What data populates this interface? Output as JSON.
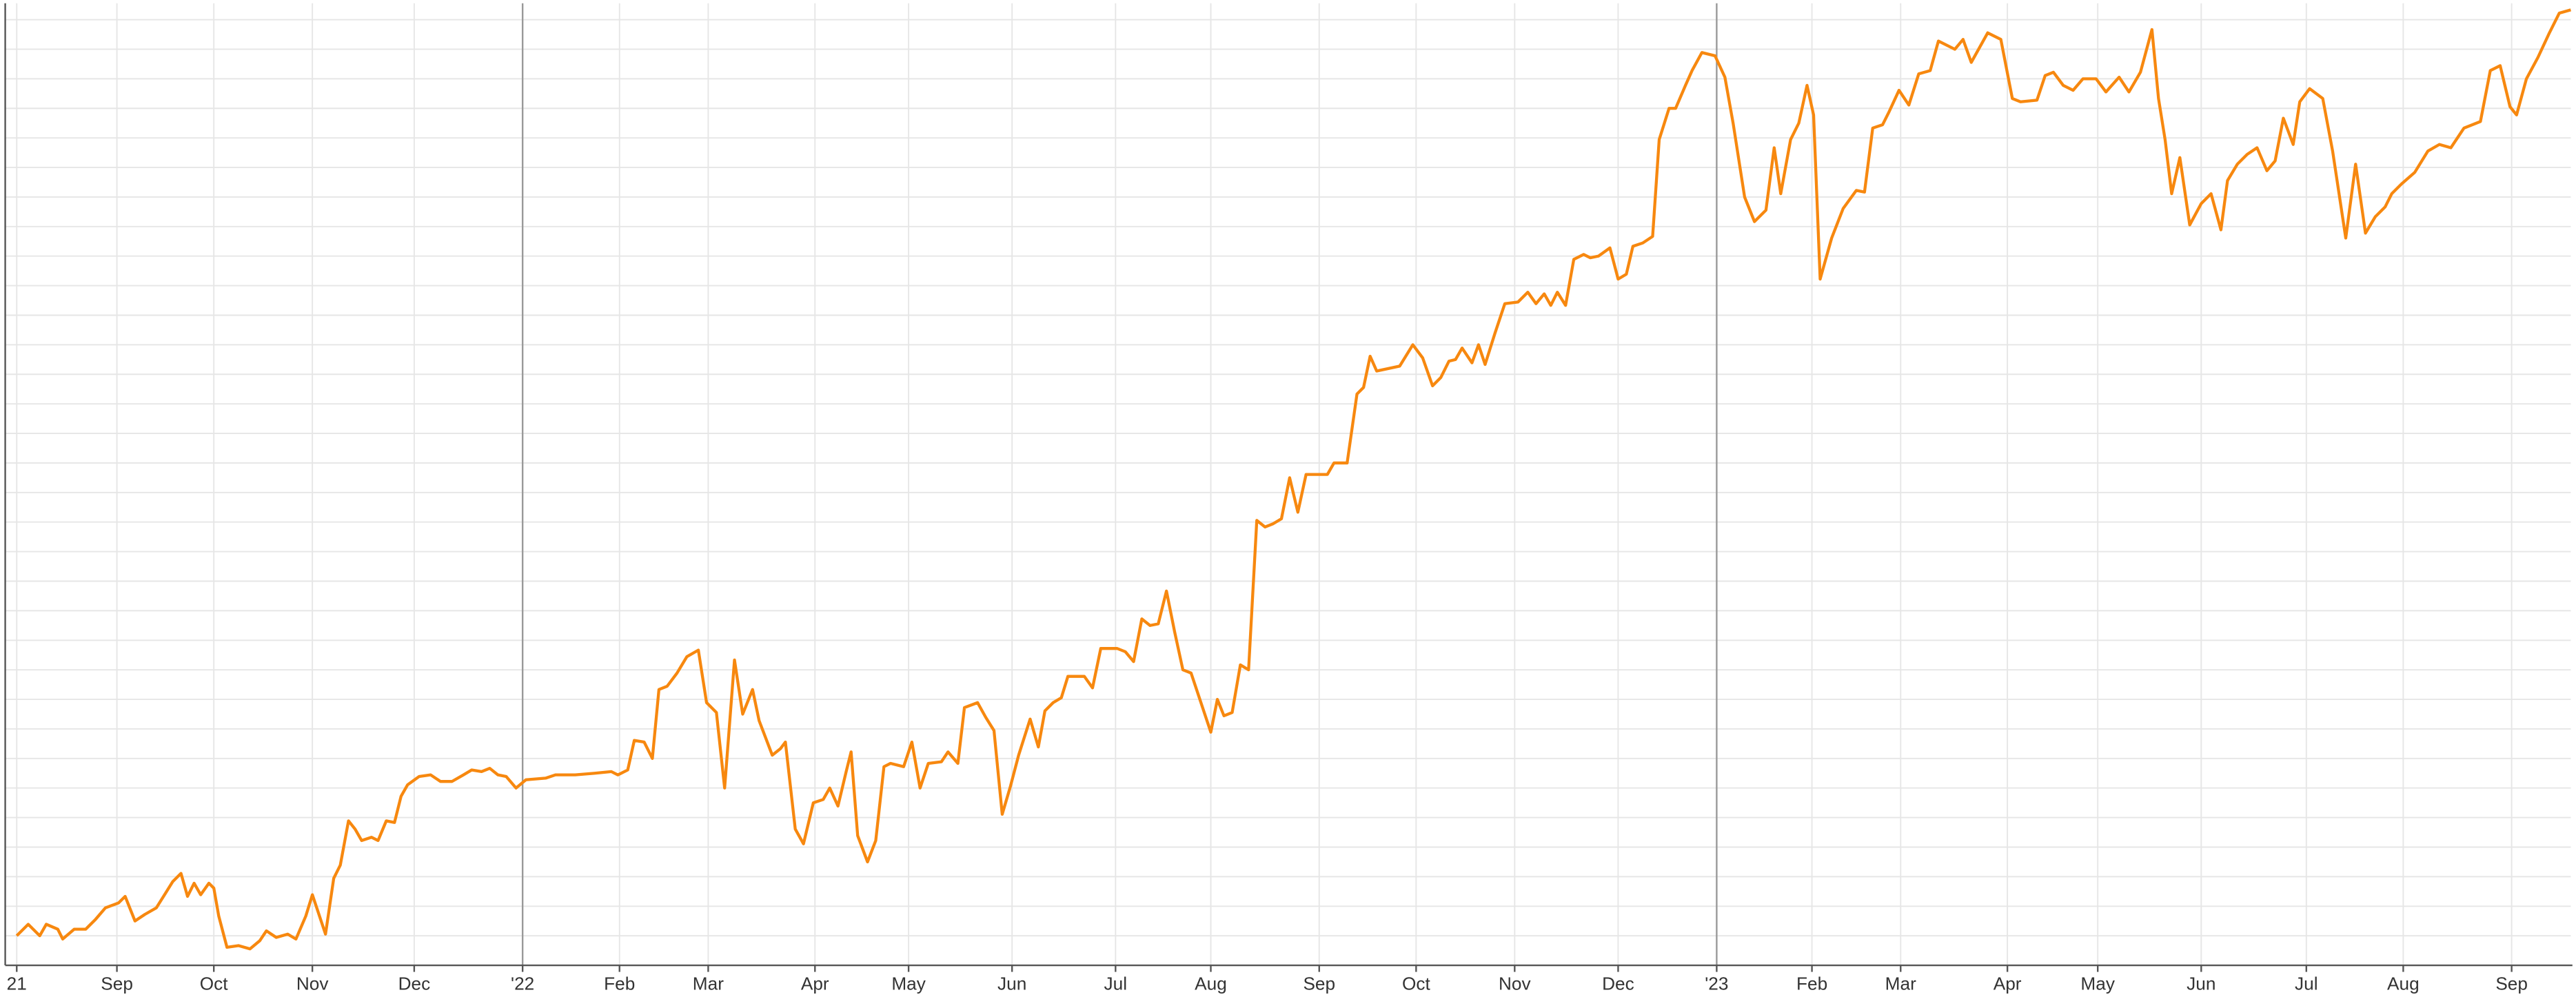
{
  "chart_data": {
    "type": "line",
    "color": "#f7880f",
    "grid": true,
    "xlim": [
      -7,
      1555
    ],
    "ylim": [
      0,
      585
    ],
    "xticks": [
      {
        "value": 0,
        "label": "21"
      },
      {
        "value": 61,
        "label": "Sep"
      },
      {
        "value": 120,
        "label": "Oct"
      },
      {
        "value": 180,
        "label": "Nov"
      },
      {
        "value": 242,
        "label": "Dec"
      },
      {
        "value": 308,
        "label": "'22"
      },
      {
        "value": 367,
        "label": "Feb"
      },
      {
        "value": 421,
        "label": "Mar"
      },
      {
        "value": 486,
        "label": "Apr"
      },
      {
        "value": 543,
        "label": "May"
      },
      {
        "value": 606,
        "label": "Jun"
      },
      {
        "value": 669,
        "label": "Jul"
      },
      {
        "value": 727,
        "label": "Aug"
      },
      {
        "value": 793,
        "label": "Sep"
      },
      {
        "value": 852,
        "label": "Oct"
      },
      {
        "value": 912,
        "label": "Nov"
      },
      {
        "value": 975,
        "label": "Dec"
      },
      {
        "value": 1035,
        "label": "'23"
      },
      {
        "value": 1093,
        "label": "Feb"
      },
      {
        "value": 1147,
        "label": "Mar"
      },
      {
        "value": 1212,
        "label": "Apr"
      },
      {
        "value": 1267,
        "label": "May"
      },
      {
        "value": 1330,
        "label": "Jun"
      },
      {
        "value": 1394,
        "label": "Jul"
      },
      {
        "value": 1453,
        "label": "Aug"
      },
      {
        "value": 1519,
        "label": "Sep"
      }
    ],
    "yticks": [
      0,
      18,
      36,
      54,
      72,
      90,
      108,
      126,
      144,
      162,
      180,
      198,
      216,
      234,
      252,
      270,
      288,
      306,
      324,
      342,
      360,
      378,
      396,
      414,
      432,
      450,
      468,
      486,
      504,
      522,
      540,
      558,
      576
    ],
    "x": [
      0,
      7,
      14,
      18,
      25,
      28,
      35,
      42,
      48,
      54,
      62,
      66,
      72,
      78,
      85,
      90,
      95,
      100,
      104,
      108,
      112,
      117,
      120,
      123,
      128,
      135,
      142,
      148,
      152,
      158,
      165,
      170,
      176,
      180,
      188,
      193,
      197,
      202,
      206,
      210,
      216,
      220,
      225,
      230,
      234,
      238,
      245,
      252,
      258,
      265,
      272,
      277,
      283,
      288,
      293,
      298,
      304,
      310,
      322,
      328,
      340,
      352,
      362,
      366,
      372,
      376,
      382,
      387,
      391,
      396,
      402,
      408,
      415,
      420,
      426,
      431,
      437,
      442,
      448,
      452,
      460,
      465,
      468,
      474,
      479,
      485,
      491,
      495,
      500,
      505,
      508,
      512,
      518,
      523,
      528,
      532,
      540,
      545,
      550,
      555,
      563,
      567,
      573,
      577,
      585,
      590,
      595,
      600,
      605,
      610,
      617,
      622,
      626,
      631,
      636,
      640,
      650,
      655,
      660,
      670,
      675,
      680,
      685,
      690,
      695,
      700,
      705,
      710,
      715,
      720,
      727,
      731,
      735,
      740,
      745,
      750,
      755,
      760,
      765,
      770,
      775,
      780,
      785,
      798,
      802,
      810,
      816,
      820,
      824,
      828,
      842,
      850,
      856,
      862,
      867,
      872,
      876,
      880,
      886,
      890,
      894,
      900,
      906,
      914,
      920,
      925,
      930,
      934,
      938,
      943,
      948,
      954,
      958,
      963,
      970,
      975,
      980,
      984,
      990,
      996,
      1000,
      1006,
      1010,
      1016,
      1020,
      1026,
      1034,
      1040,
      1045,
      1052,
      1058,
      1065,
      1070,
      1074,
      1080,
      1085,
      1090,
      1094,
      1098,
      1105,
      1112,
      1120,
      1125,
      1130,
      1136,
      1140,
      1146,
      1152,
      1158,
      1165,
      1170,
      1180,
      1185,
      1190,
      1200,
      1208,
      1215,
      1220,
      1230,
      1235,
      1240,
      1246,
      1252,
      1258,
      1266,
      1272,
      1280,
      1286,
      1293,
      1300,
      1304,
      1308,
      1312,
      1317,
      1323,
      1330,
      1336,
      1342,
      1346,
      1352,
      1358,
      1364,
      1370,
      1375,
      1380,
      1386,
      1390,
      1396,
      1404,
      1410,
      1418,
      1424,
      1430,
      1436,
      1442,
      1446,
      1452,
      1460,
      1468,
      1475,
      1482,
      1490,
      1500,
      1506,
      1512,
      1518,
      1522,
      1528,
      1535,
      1542,
      1548,
      1555
    ],
    "values": [
      18,
      25,
      18,
      25,
      22,
      16,
      22,
      22,
      28,
      35,
      38,
      42,
      27,
      31,
      35,
      43,
      51,
      56,
      42,
      50,
      43,
      50,
      47,
      30,
      11,
      12,
      10,
      15,
      21,
      17,
      19,
      16,
      30,
      43,
      19,
      53,
      61,
      88,
      83,
      76,
      78,
      76,
      88,
      87,
      103,
      110,
      115,
      116,
      112,
      112,
      116,
      119,
      118,
      120,
      116,
      115,
      108,
      113,
      114,
      116,
      116,
      117,
      118,
      116,
      119,
      137,
      136,
      126,
      168,
      170,
      178,
      188,
      192,
      160,
      154,
      108,
      186,
      153,
      168,
      149,
      128,
      132,
      136,
      83,
      74,
      99,
      101,
      108,
      97,
      118,
      130,
      79,
      63,
      76,
      121,
      123,
      121,
      136,
      108,
      123,
      124,
      130,
      123,
      157,
      160,
      151,
      143,
      92,
      109,
      128,
      150,
      133,
      155,
      160,
      163,
      176,
      176,
      169,
      193,
      193,
      191,
      185,
      211,
      207,
      208,
      228,
      203,
      180,
      178,
      163,
      142,
      162,
      152,
      154,
      183,
      180,
      271,
      267,
      269,
      272,
      297,
      276,
      299,
      299,
      306,
      306,
      348,
      352,
      371,
      362,
      365,
      378,
      370,
      353,
      358,
      368,
      369,
      376,
      367,
      378,
      366,
      385,
      403,
      404,
      410,
      403,
      409,
      402,
      410,
      402,
      430,
      433,
      431,
      432,
      437,
      418,
      421,
      438,
      440,
      444,
      503,
      522,
      522,
      536,
      545,
      556,
      554,
      541,
      513,
      468,
      453,
      460,
      498,
      470,
      503,
      513,
      536,
      518,
      418,
      443,
      461,
      472,
      471,
      510,
      512,
      520,
      533,
      524,
      543,
      545,
      563,
      558,
      564,
      550,
      568,
      564,
      528,
      526,
      527,
      542,
      544,
      536,
      533,
      540,
      540,
      532,
      541,
      532,
      544,
      570,
      528,
      503,
      470,
      492,
      451,
      464,
      470,
      448,
      478,
      488,
      494,
      498,
      484,
      490,
      516,
      500,
      526,
      534,
      528,
      496,
      443,
      488,
      446,
      456,
      462,
      470,
      476,
      483,
      496,
      500,
      498,
      510,
      514,
      545,
      548,
      523,
      518,
      540,
      553,
      568,
      580,
      582
    ]
  }
}
